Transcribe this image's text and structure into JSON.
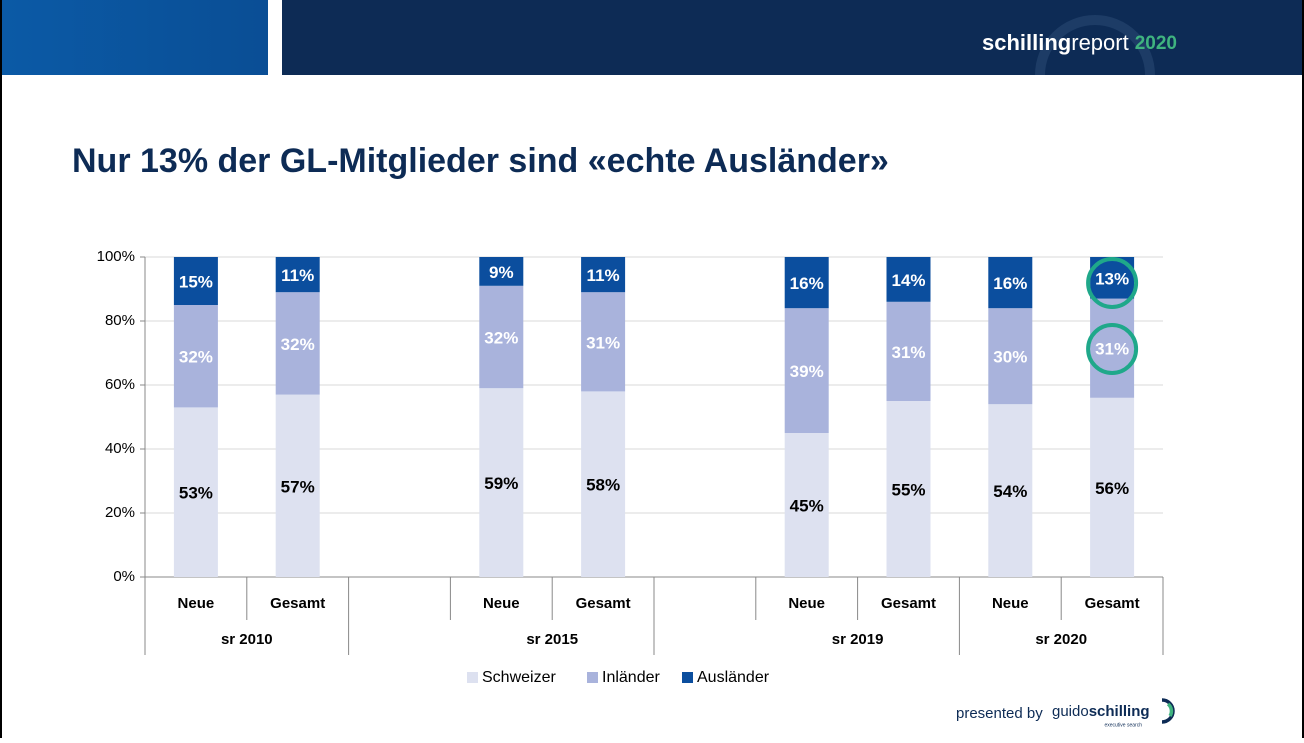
{
  "header": {
    "brand_bold": "schilling",
    "brand": "report",
    "year": "2020"
  },
  "chart_data": {
    "type": "stacked_bar",
    "title": "Nur 13% der GL-Mitglieder sind «echte Ausländer»",
    "categories": [
      "Neue",
      "Gesamt",
      null,
      "Neue",
      "Gesamt",
      null,
      "Neue",
      "Gesamt",
      "Neue",
      "Gesamt"
    ],
    "groups": [
      "sr 2010",
      "sr 2015",
      "sr 2019",
      "sr 2020"
    ],
    "series": [
      {
        "name": "Schweizer",
        "color": "#dde1f0",
        "label_color": "#000000",
        "values": [
          53,
          57,
          null,
          59,
          58,
          null,
          45,
          55,
          54,
          56
        ],
        "value_labels": [
          "53%",
          "57%",
          null,
          "59%",
          "58%",
          null,
          "45%",
          "55%",
          "54%",
          "56%"
        ]
      },
      {
        "name": "Inländer",
        "color": "#a9b3dc",
        "label_color": "#ffffff",
        "values": [
          32,
          32,
          null,
          32,
          31,
          null,
          39,
          31,
          30,
          31
        ],
        "value_labels": [
          "32%",
          "32%",
          null,
          "32%",
          "31%",
          null,
          "39%",
          "31%",
          "30%",
          "31%"
        ]
      },
      {
        "name": "Ausländer",
        "color": "#0b4e9e",
        "label_color": "#ffffff",
        "values": [
          15,
          11,
          null,
          9,
          11,
          null,
          16,
          14,
          16,
          13
        ],
        "value_labels": [
          "15%",
          "11%",
          null,
          "9%",
          "11%",
          null,
          "16%",
          "14%",
          "16%",
          "13%"
        ]
      }
    ],
    "ylim": [
      0,
      100
    ],
    "yticks": [
      {
        "value": 0,
        "label": "0%"
      },
      {
        "value": 20,
        "label": "20%"
      },
      {
        "value": 40,
        "label": "40%"
      },
      {
        "value": 60,
        "label": "60%"
      },
      {
        "value": 80,
        "label": "80%"
      },
      {
        "value": 100,
        "label": "100%"
      }
    ],
    "grid": true,
    "legend": "bottom"
  },
  "footer": {
    "presented": "presented by",
    "brand_light": "guido",
    "brand_bold": "schilling",
    "tagline": "executive search"
  }
}
